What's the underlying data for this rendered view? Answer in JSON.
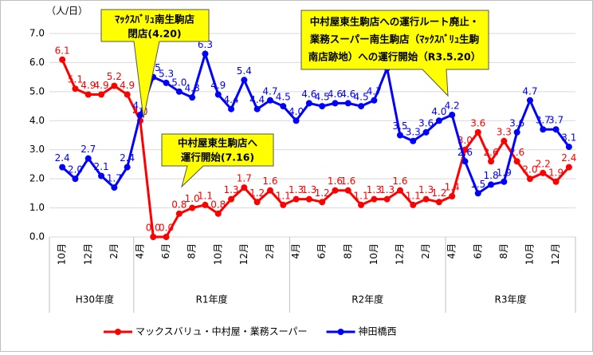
{
  "chart_data": {
    "type": "line",
    "y_unit_label": "（人/日）",
    "categories": [
      "10月",
      null,
      "12月",
      null,
      "2月",
      null,
      "4月",
      null,
      "6月",
      null,
      "8月",
      null,
      "10月",
      null,
      "12月",
      null,
      "2月",
      null,
      "4月",
      null,
      "6月",
      null,
      "8月",
      null,
      "10月",
      null,
      "12月",
      null,
      "2月",
      null,
      "4月",
      null,
      "6月",
      null,
      "8月",
      null,
      "10月",
      null,
      "12月",
      null
    ],
    "groups": [
      {
        "label": "H30年度",
        "span": 6
      },
      {
        "label": "R1年度",
        "span": 12
      },
      {
        "label": "R2年度",
        "span": 12
      },
      {
        "label": "R3年度",
        "span": 10
      }
    ],
    "series": [
      {
        "name": "マックスバリュ・中村屋・業務スーパー",
        "color": "#ff0000",
        "values": [
          6.1,
          5.1,
          4.9,
          4.9,
          5.2,
          4.9,
          4.0,
          0.0,
          0.0,
          0.8,
          1.0,
          1.1,
          0.8,
          1.3,
          1.7,
          1.2,
          1.6,
          1.1,
          1.3,
          1.3,
          1.2,
          1.6,
          1.6,
          1.1,
          1.3,
          1.3,
          1.6,
          1.1,
          1.3,
          1.2,
          1.4,
          3.0,
          3.6,
          2.6,
          3.3,
          2.6,
          2.0,
          2.2,
          1.9,
          2.4
        ],
        "value_labels": [
          "6.1",
          "5.1",
          "4.9",
          "4.9",
          "5.2",
          "4.9",
          "4.0",
          "0.0",
          "0.0",
          "0.8",
          "1.0",
          "1.1",
          "0.8",
          "1.3",
          "1.7",
          "1.2",
          "1.6",
          "1.1",
          "1.3",
          "1.3",
          "1.2",
          "1.6",
          "1.6",
          "1.1",
          "1.3",
          "1.3",
          "1.6",
          "1.1",
          "1.3",
          "1.2",
          "1.4",
          "3.0",
          "3.6",
          "2.6",
          "3.3",
          "2.6",
          "2.0",
          "2.2",
          "1.9",
          "2.4"
        ]
      },
      {
        "name": "神田橋西",
        "color": "#0000ff",
        "values": [
          2.4,
          2.0,
          2.7,
          2.1,
          1.7,
          2.4,
          4.2,
          5.5,
          5.3,
          5.0,
          4.8,
          6.3,
          4.9,
          4.4,
          5.4,
          4.4,
          4.7,
          4.5,
          4.0,
          4.6,
          4.5,
          4.6,
          4.6,
          4.5,
          4.7,
          5.8,
          3.5,
          3.3,
          3.6,
          4.0,
          4.2,
          2.6,
          1.5,
          1.8,
          1.9,
          3.6,
          4.7,
          3.7,
          3.7,
          3.1
        ],
        "value_labels": [
          "2.4",
          "2.0",
          "2.7",
          "2.1",
          "1.7",
          "2.4",
          "4.2",
          "5.5",
          "5.3",
          "5.0",
          "4.8",
          "6.3",
          "4.9",
          "4.4",
          "5.4",
          "4.4",
          "4.7",
          "4.5",
          "4.0",
          "4.6",
          "4.5",
          "4.6",
          "4.6",
          "4.5",
          "4.7",
          null,
          "3.5",
          "3.3",
          "3.6",
          "4.0",
          "4.2",
          "2.6",
          "1.5",
          "1.8",
          "1.9",
          "3.6",
          "4.7",
          "3.7",
          "3.7",
          "3.1"
        ]
      }
    ],
    "ylim": [
      0,
      7
    ],
    "yticks": [
      {
        "value": 0,
        "label": "0.0"
      },
      {
        "value": 1,
        "label": "1.0"
      },
      {
        "value": 2,
        "label": "2.0"
      },
      {
        "value": 3,
        "label": "3.0"
      },
      {
        "value": 4,
        "label": "4.0"
      },
      {
        "value": 5,
        "label": "5.0"
      },
      {
        "value": 6,
        "label": "6.0"
      },
      {
        "value": 7,
        "label": "7.0"
      }
    ],
    "grid": true,
    "annotations": [
      {
        "lines": [
          "ﾏｯｸｽﾊﾞﾘｭ南生駒店",
          "閉店(4.20)"
        ]
      },
      {
        "lines": [
          "中村屋東生駒店へ",
          "運行開始(7.16)"
        ]
      },
      {
        "lines": [
          "中村屋東生駒店への運行ルート廃止・",
          "業務スーパー南生駒店（ﾏｯｸｽﾊﾞﾘｭ生駒",
          "南店跡地）への運行開始（R3.5.20）"
        ]
      }
    ]
  }
}
